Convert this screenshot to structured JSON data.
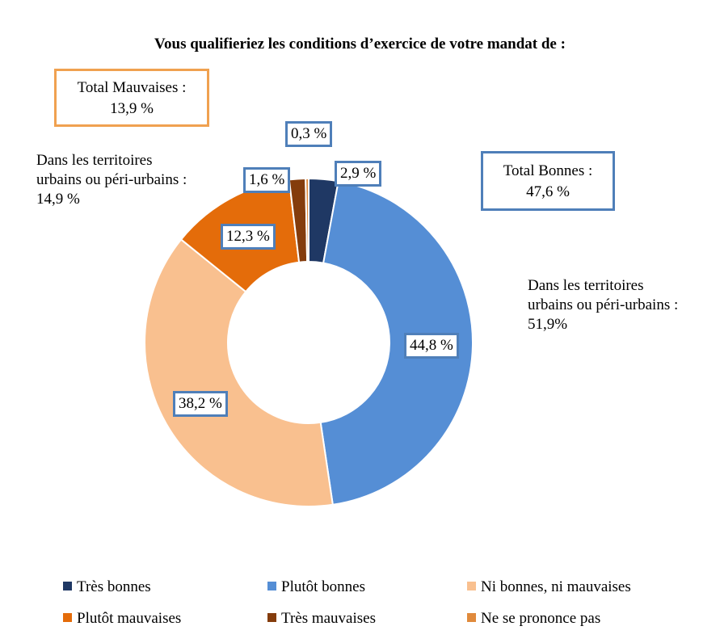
{
  "chart_data": {
    "type": "donut",
    "title": "Vous qualifieriez les conditions d’exercice de votre mandat de :",
    "categories": [
      "Très bonnes",
      "Plutôt bonnes",
      "Ni bonnes, ni mauvaises",
      "Plutôt mauvaises",
      "Très mauvaises",
      "Ne se prononce pas"
    ],
    "values": [
      2.9,
      44.8,
      38.2,
      12.3,
      1.6,
      0.3
    ],
    "data_labels": [
      "2,9 %",
      "44,8 %",
      "38,2 %",
      "12,3 %",
      "1,6 %",
      "0,3 %"
    ],
    "colors": [
      "#1f3864",
      "#558ed5",
      "#f9c08f",
      "#e46c0a",
      "#843c0c",
      "#e08a3c"
    ],
    "legend_position": "bottom",
    "annotations": {
      "total_mauvaises": "Total Mauvaises :\n13,9 %",
      "total_bonnes": "Total Bonnes :\n47,6 %",
      "urbains_mauvaises": "Dans les territoires\nurbains ou péri-urbains :\n14,9 %",
      "urbains_bonnes": "Dans les territoires\nurbains ou péri-urbains :\n51,9%"
    }
  }
}
